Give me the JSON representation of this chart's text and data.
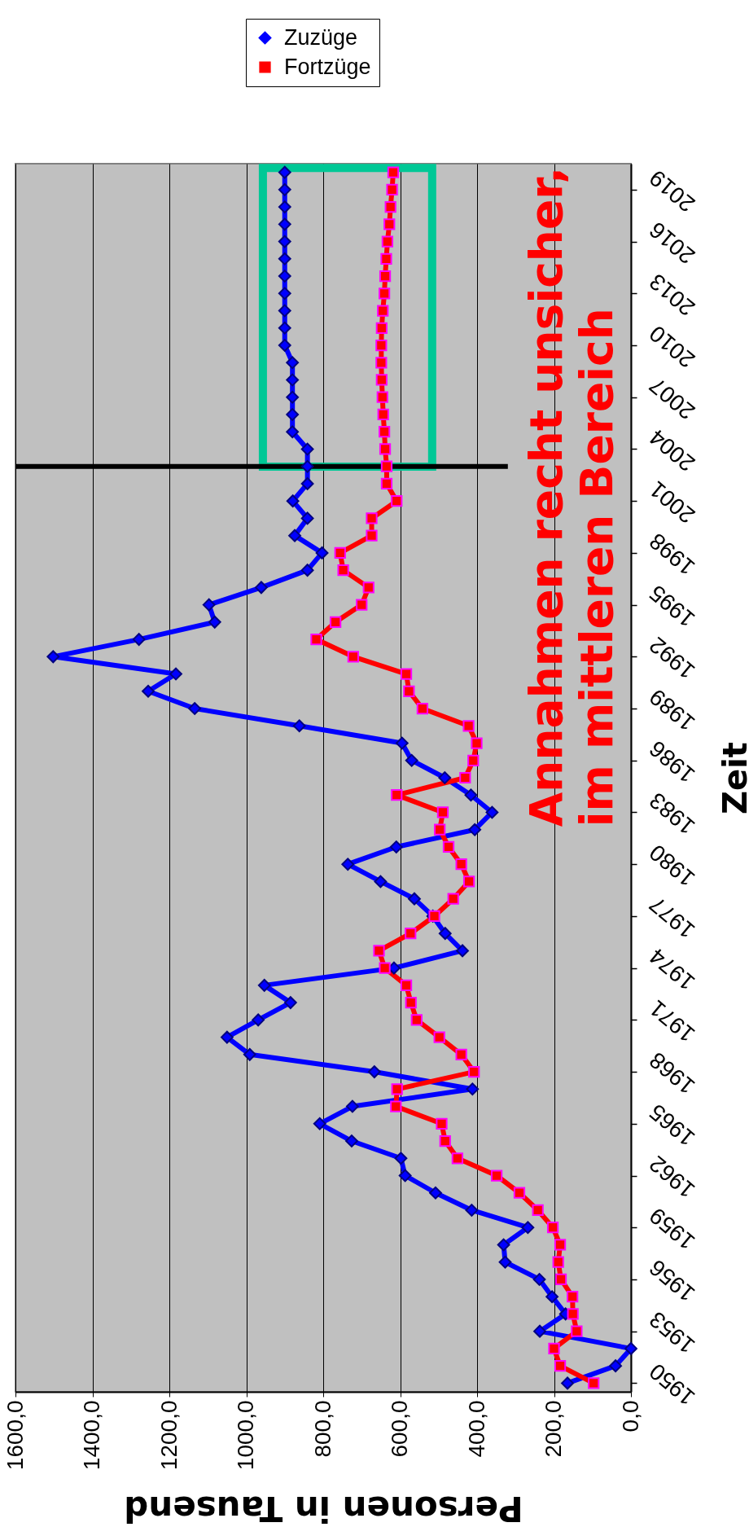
{
  "chart_data": {
    "type": "line",
    "xlabel": "Personen in Tausend",
    "ylabel": "Zeit",
    "xlim": [
      1600,
      0
    ],
    "xticks": [
      {
        "value": 1600,
        "label": "1600,0"
      },
      {
        "value": 1400,
        "label": "1400,0"
      },
      {
        "value": 1200,
        "label": "1200,0"
      },
      {
        "value": 1000,
        "label": "1000,0"
      },
      {
        "value": 800,
        "label": "800,0"
      },
      {
        "value": 600,
        "label": "600,0"
      },
      {
        "value": 400,
        "label": "400,0"
      },
      {
        "value": 200,
        "label": "200,0"
      },
      {
        "value": 0,
        "label": "0,0"
      }
    ],
    "ylim": [
      1949.5,
      2020.5
    ],
    "yticks": [
      1950,
      1953,
      1956,
      1959,
      1962,
      1965,
      1968,
      1971,
      1974,
      1977,
      1980,
      1983,
      1986,
      1989,
      1992,
      1995,
      1998,
      2001,
      2004,
      2007,
      2010,
      2013,
      2016,
      2019
    ],
    "series": [
      {
        "name": "Zuzüge",
        "color": "#0000ff",
        "marker": "diamond",
        "x": [
          165,
          40,
          0,
          237,
          170,
          205,
          238,
          327,
          331,
          268,
          414,
          508,
          587,
          598,
          726,
          809,
          724,
          412,
          667,
          991,
          1050,
          969,
          885,
          953,
          616,
          438,
          483,
          515,
          563,
          651,
          736,
          610,
          406,
          361,
          416,
          484,
          570,
          595,
          862,
          1134,
          1255,
          1183,
          1502,
          1279,
          1082,
          1097,
          961,
          841,
          803,
          874,
          841,
          879,
          841,
          841,
          841,
          880,
          880,
          880,
          880,
          880,
          900,
          900,
          900,
          900,
          900,
          900,
          900,
          900,
          900,
          900,
          900
        ],
        "values": [
          1950,
          1951,
          1952,
          1953,
          1954,
          1955,
          1956,
          1957,
          1958,
          1959,
          1960,
          1961,
          1962,
          1963,
          1964,
          1965,
          1966,
          1967,
          1968,
          1969,
          1970,
          1971,
          1972,
          1973,
          1974,
          1975,
          1976,
          1977,
          1978,
          1979,
          1980,
          1981,
          1982,
          1983,
          1984,
          1985,
          1986,
          1987,
          1988,
          1989,
          1990,
          1991,
          1992,
          1993,
          1994,
          1995,
          1996,
          1997,
          1998,
          1999,
          2000,
          2001,
          2002,
          2003,
          2004,
          2005,
          2006,
          2007,
          2008,
          2009,
          2010,
          2011,
          2012,
          2013,
          2014,
          2015,
          2016,
          2017,
          2018,
          2019,
          2020
        ]
      },
      {
        "name": "Fortzüge",
        "color": "#ff0000",
        "marker": "square",
        "x": [
          97,
          184,
          200,
          141,
          151,
          152,
          182,
          189,
          184,
          203,
          242,
          290,
          349,
          451,
          483,
          492,
          611,
          608,
          408,
          441,
          498,
          557,
          572,
          584,
          640,
          655,
          573,
          511,
          462,
          421,
          441,
          474,
          497,
          489,
          609,
          431,
          410,
          401,
          422,
          542,
          577,
          584,
          722,
          818,
          768,
          700,
          682,
          748,
          756,
          674,
          674,
          609,
          635,
          635,
          639,
          641,
          644,
          646,
          648,
          649,
          649,
          648,
          645,
          641,
          639,
          636,
          633,
          628,
          625,
          621,
          618
        ],
        "values": [
          1950,
          1951,
          1952,
          1953,
          1954,
          1955,
          1956,
          1957,
          1958,
          1959,
          1960,
          1961,
          1962,
          1963,
          1964,
          1965,
          1966,
          1967,
          1968,
          1969,
          1970,
          1971,
          1972,
          1973,
          1974,
          1975,
          1976,
          1977,
          1978,
          1979,
          1980,
          1981,
          1982,
          1983,
          1984,
          1985,
          1986,
          1987,
          1988,
          1989,
          1990,
          1991,
          1992,
          1993,
          1994,
          1995,
          1996,
          1997,
          1998,
          1999,
          2000,
          2001,
          2002,
          2003,
          2004,
          2005,
          2006,
          2007,
          2008,
          2009,
          2010,
          2011,
          2012,
          2013,
          2014,
          2015,
          2016,
          2017,
          2018,
          2019,
          2020
        ]
      }
    ],
    "grid": "x",
    "legend": "top",
    "ref_lines": [
      {
        "axis": "y",
        "value": 2003,
        "color": "#000000"
      }
    ],
    "annotations": [
      "Annahmen recht unsicher,\nim mittleren Bereich"
    ]
  }
}
